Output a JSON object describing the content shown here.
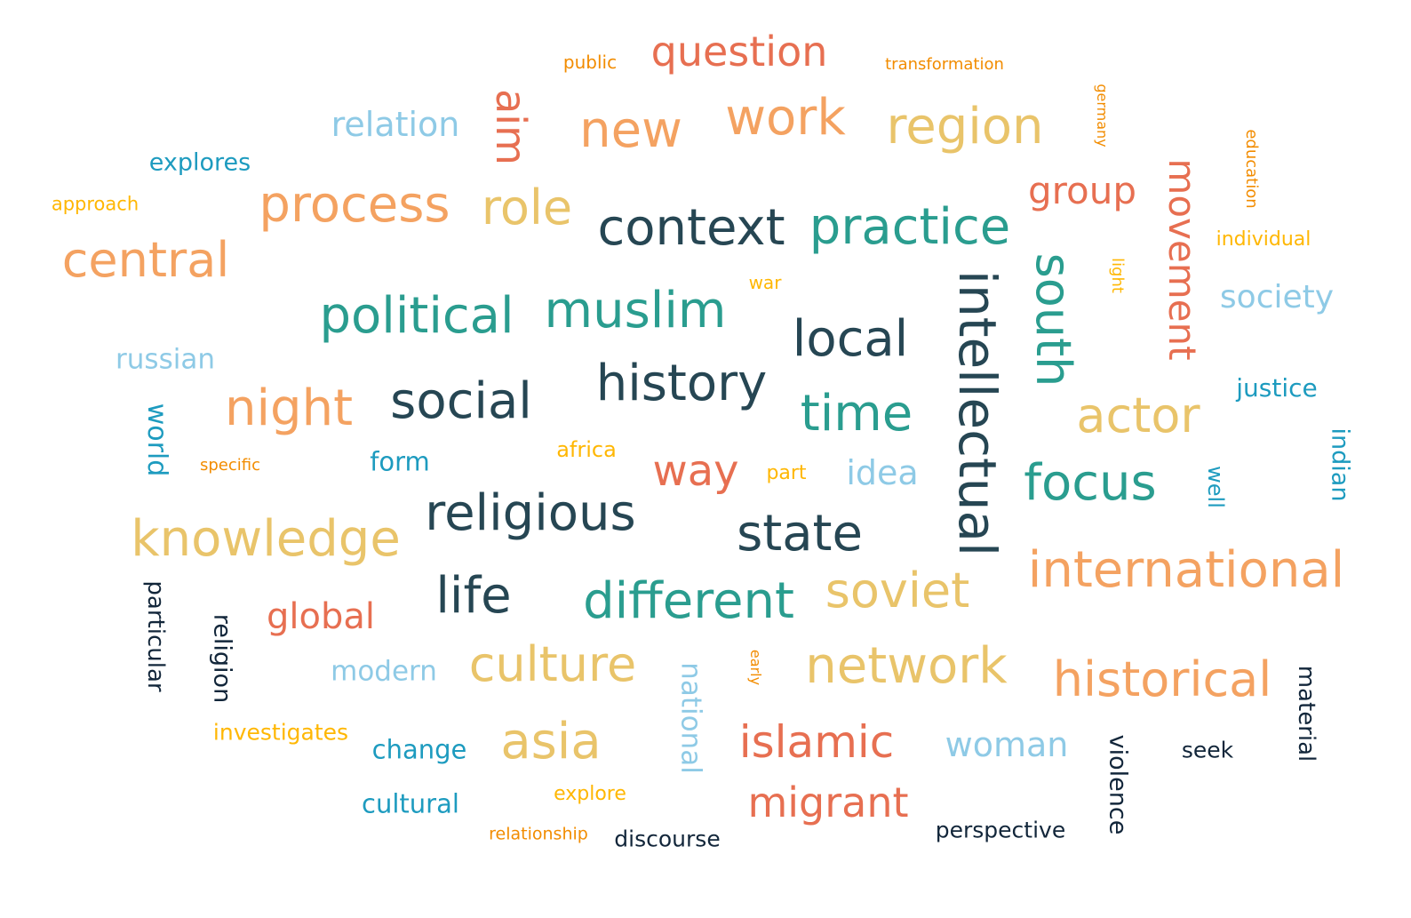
{
  "palette": {
    "dark": "#264653",
    "navy": "#12263a",
    "teal": "#2a9d8f",
    "blue": "#1d9bbf",
    "light_blue": "#8ecae6",
    "yellow": "#e9c46a",
    "orange": "#f4a261",
    "dark_orange": "#f28c00",
    "gold": "#ffb703",
    "red": "#e76f51"
  },
  "words": [
    {
      "text": "question"
    },
    {
      "text": "public"
    },
    {
      "text": "transformation"
    },
    {
      "text": "relation"
    },
    {
      "text": "aim"
    },
    {
      "text": "new"
    },
    {
      "text": "work"
    },
    {
      "text": "region"
    },
    {
      "text": "germany"
    },
    {
      "text": "education"
    },
    {
      "text": "explores"
    },
    {
      "text": "approach"
    },
    {
      "text": "process"
    },
    {
      "text": "role"
    },
    {
      "text": "context"
    },
    {
      "text": "practice"
    },
    {
      "text": "group"
    },
    {
      "text": "movement"
    },
    {
      "text": "individual"
    },
    {
      "text": "central"
    },
    {
      "text": "light"
    },
    {
      "text": "south"
    },
    {
      "text": "war"
    },
    {
      "text": "society"
    },
    {
      "text": "political"
    },
    {
      "text": "muslim"
    },
    {
      "text": "local"
    },
    {
      "text": "intellectual"
    },
    {
      "text": "russian"
    },
    {
      "text": "history"
    },
    {
      "text": "justice"
    },
    {
      "text": "night"
    },
    {
      "text": "social"
    },
    {
      "text": "time"
    },
    {
      "text": "actor"
    },
    {
      "text": "world"
    },
    {
      "text": "specific"
    },
    {
      "text": "form"
    },
    {
      "text": "africa"
    },
    {
      "text": "way"
    },
    {
      "text": "part"
    },
    {
      "text": "idea"
    },
    {
      "text": "focus"
    },
    {
      "text": "well"
    },
    {
      "text": "indian"
    },
    {
      "text": "religious"
    },
    {
      "text": "knowledge"
    },
    {
      "text": "state"
    },
    {
      "text": "international"
    },
    {
      "text": "life"
    },
    {
      "text": "different"
    },
    {
      "text": "soviet"
    },
    {
      "text": "global"
    },
    {
      "text": "particular"
    },
    {
      "text": "religion"
    },
    {
      "text": "modern"
    },
    {
      "text": "culture"
    },
    {
      "text": "national"
    },
    {
      "text": "early"
    },
    {
      "text": "network"
    },
    {
      "text": "historical"
    },
    {
      "text": "material"
    },
    {
      "text": "investigates"
    },
    {
      "text": "change"
    },
    {
      "text": "asia"
    },
    {
      "text": "islamic"
    },
    {
      "text": "woman"
    },
    {
      "text": "violence"
    },
    {
      "text": "seek"
    },
    {
      "text": "cultural"
    },
    {
      "text": "explore"
    },
    {
      "text": "migrant"
    },
    {
      "text": "relationship"
    },
    {
      "text": "discourse"
    },
    {
      "text": "perspective"
    }
  ]
}
